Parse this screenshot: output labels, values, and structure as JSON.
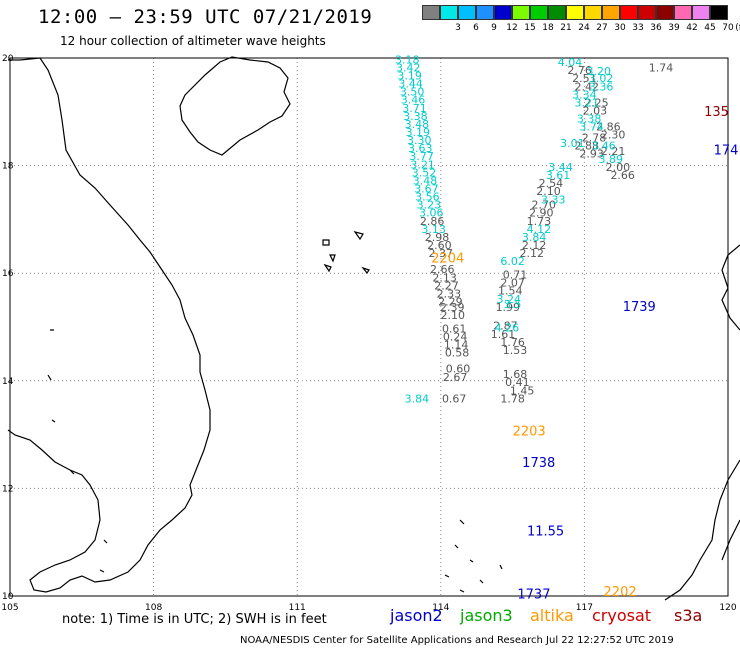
{
  "header": {
    "title": "12:00 – 23:59 UTC 07/21/2019",
    "subtitle": "12 hour collection of altimeter wave heights"
  },
  "scale": {
    "unit": "(ft)",
    "steps": [
      {
        "label": "",
        "color": "#808080"
      },
      {
        "label": "3",
        "color": "#00e8e8"
      },
      {
        "label": "6",
        "color": "#00bfff"
      },
      {
        "label": "9",
        "color": "#1e90ff"
      },
      {
        "label": "12",
        "color": "#0000cd"
      },
      {
        "label": "15",
        "color": "#7cfc00"
      },
      {
        "label": "18",
        "color": "#00cd00"
      },
      {
        "label": "21",
        "color": "#008b00"
      },
      {
        "label": "24",
        "color": "#ffff00"
      },
      {
        "label": "27",
        "color": "#ffd700"
      },
      {
        "label": "30",
        "color": "#ffa500"
      },
      {
        "label": "33",
        "color": "#ff0000"
      },
      {
        "label": "36",
        "color": "#cd0000"
      },
      {
        "label": "39",
        "color": "#8b0000"
      },
      {
        "label": "42",
        "color": "#ff69b4"
      },
      {
        "label": "45",
        "color": "#ee82ee"
      },
      {
        "label": "70",
        "color": "#000000"
      }
    ]
  },
  "axes": {
    "lon_ticks": [
      "105",
      "108",
      "111",
      "114",
      "117",
      "120"
    ],
    "lat_ticks": [
      "20",
      "18",
      "16",
      "14",
      "12",
      "10"
    ]
  },
  "colors": {
    "gray": "#555555",
    "cyan": "#00cccc",
    "blue": "#0000cc",
    "orange": "#ff9900",
    "darkred": "#8b0000",
    "coast": "#000000",
    "grid": "#888888"
  },
  "track_labels": [
    {
      "text": "2204",
      "lon": 113.8,
      "lat": 16.2,
      "color": "orange"
    },
    {
      "text": "2203",
      "lon": 115.5,
      "lat": 12.98,
      "color": "orange"
    },
    {
      "text": "2202",
      "lon": 117.4,
      "lat": 10.0,
      "color": "orange"
    },
    {
      "text": "1739",
      "lon": 117.8,
      "lat": 15.3,
      "color": "blue"
    },
    {
      "text": "1738",
      "lon": 115.7,
      "lat": 12.4,
      "color": "blue"
    },
    {
      "text": "1737",
      "lon": 115.6,
      "lat": 9.95,
      "color": "blue"
    },
    {
      "text": "174",
      "lon": 119.7,
      "lat": 18.21,
      "color": "blue"
    },
    {
      "text": "135",
      "lon": 119.5,
      "lat": 18.92,
      "color": "darkred"
    },
    {
      "text": "11.55",
      "lon": 115.8,
      "lat": 11.12,
      "color": "blue"
    }
  ],
  "tracks": [
    {
      "color": "cyan",
      "points": [
        [
          "3.18",
          113.3,
          19.9
        ],
        [
          "3.42",
          113.32,
          19.75
        ],
        [
          "3.19",
          113.35,
          19.6
        ],
        [
          "3.44",
          113.37,
          19.45
        ],
        [
          "3.50",
          113.4,
          19.3
        ],
        [
          "3.46",
          113.42,
          19.15
        ],
        [
          "3.71",
          113.45,
          19.0
        ],
        [
          "3.38",
          113.47,
          18.85
        ],
        [
          "3.48",
          113.5,
          18.7
        ],
        [
          "3.19",
          113.52,
          18.55
        ],
        [
          "3.30",
          113.55,
          18.4
        ],
        [
          "3.63",
          113.57,
          18.25
        ],
        [
          "3.77",
          113.6,
          18.1
        ],
        [
          "3.21",
          113.62,
          17.95
        ],
        [
          "3.52",
          113.65,
          17.8
        ],
        [
          "3.48",
          113.67,
          17.65
        ],
        [
          "3.67",
          113.7,
          17.5
        ],
        [
          "3.56",
          113.72,
          17.35
        ],
        [
          "3.23",
          113.75,
          17.2
        ],
        [
          "3.06",
          113.8,
          17.05
        ],
        [
          "3.13",
          113.85,
          16.75
        ]
      ]
    },
    {
      "color": "gray",
      "points": [
        [
          "2.86",
          113.82,
          16.9
        ],
        [
          "2.98",
          113.92,
          16.6
        ],
        [
          "2.60",
          113.97,
          16.45
        ],
        [
          "2.37",
          114.0,
          16.3
        ],
        [
          "2.66",
          114.03,
          16.0
        ],
        [
          "2.13",
          114.08,
          15.85
        ],
        [
          "2.27",
          114.12,
          15.7
        ],
        [
          "2.33",
          114.17,
          15.55
        ],
        [
          "2.29",
          114.2,
          15.4
        ],
        [
          "2.39",
          114.24,
          15.3
        ],
        [
          "2.10",
          114.25,
          15.15
        ],
        [
          "0.61",
          114.28,
          14.9
        ],
        [
          "0.24",
          114.3,
          14.75
        ],
        [
          "1.14",
          114.32,
          14.6
        ],
        [
          "0.58",
          114.34,
          14.45
        ],
        [
          "0.60",
          114.36,
          14.15
        ],
        [
          "2.67",
          114.3,
          14.0
        ],
        [
          "0.67",
          114.28,
          13.6
        ]
      ]
    },
    {
      "color": "gray",
      "points": [
        [
          "0.71",
          115.55,
          15.9
        ],
        [
          "2.07",
          115.5,
          15.75
        ],
        [
          "1.54",
          115.45,
          15.6
        ],
        [
          "1.99",
          115.4,
          15.3
        ],
        [
          "2.87",
          115.35,
          14.95
        ],
        [
          "1.61",
          115.3,
          14.8
        ],
        [
          "1.76",
          115.5,
          14.65
        ],
        [
          "1.53",
          115.55,
          14.5
        ],
        [
          "1.68",
          115.55,
          14.05
        ],
        [
          "0.41",
          115.6,
          13.9
        ],
        [
          "1.45",
          115.7,
          13.75
        ],
        [
          "1.78",
          115.5,
          13.6
        ]
      ]
    },
    {
      "color": "cyan",
      "points": [
        [
          "3.24",
          115.42,
          15.45
        ],
        [
          "3.5",
          115.5,
          15.35
        ],
        [
          "4.26",
          115.38,
          14.92
        ],
        [
          "3.84",
          113.5,
          13.6
        ]
      ]
    },
    {
      "color": "gray",
      "points": [
        [
          "2.76",
          116.9,
          19.7
        ],
        [
          "2.51",
          117.0,
          19.55
        ],
        [
          "2.42",
          117.05,
          19.4
        ],
        [
          "2.25",
          117.25,
          19.1
        ],
        [
          "2.03",
          117.22,
          18.95
        ],
        [
          "2.86",
          117.5,
          18.65
        ],
        [
          "2.30",
          117.6,
          18.5
        ],
        [
          "2.78",
          117.2,
          18.45
        ],
        [
          "2.93",
          117.15,
          18.15
        ],
        [
          "2.88",
          117.05,
          18.3
        ],
        [
          "2.21",
          117.6,
          18.2
        ],
        [
          "2.00",
          117.7,
          17.9
        ],
        [
          "2.66",
          117.8,
          17.75
        ],
        [
          "2.54",
          116.3,
          17.6
        ],
        [
          "2.10",
          116.25,
          17.45
        ],
        [
          "2.70",
          116.15,
          17.2
        ],
        [
          "2.90",
          116.1,
          17.05
        ],
        [
          "1.73",
          116.05,
          16.9
        ],
        [
          "2.12",
          115.95,
          16.45
        ],
        [
          "2.12",
          115.9,
          16.3
        ],
        [
          "1.74",
          118.6,
          19.75
        ]
      ]
    },
    {
      "color": "cyan",
      "points": [
        [
          "4.04",
          116.7,
          19.85
        ],
        [
          "3.20",
          117.3,
          19.68
        ],
        [
          "3.02",
          117.35,
          19.55
        ],
        [
          "3.36",
          117.35,
          19.4
        ],
        [
          "3.34",
          117.0,
          19.25
        ],
        [
          "3.21",
          117.05,
          19.1
        ],
        [
          "3.38",
          117.1,
          18.8
        ],
        [
          "3.74",
          117.15,
          18.65
        ],
        [
          "3.01",
          116.75,
          18.35
        ],
        [
          "3.46",
          117.4,
          18.3
        ],
        [
          "3.89",
          117.55,
          18.05
        ],
        [
          "3.61",
          116.45,
          17.75
        ],
        [
          "3.44",
          116.5,
          17.9
        ],
        [
          "3.33",
          116.35,
          17.3
        ],
        [
          "4.12",
          116.05,
          16.75
        ],
        [
          "3.84",
          115.95,
          16.6
        ],
        [
          "6.02",
          115.5,
          16.15
        ]
      ]
    }
  ],
  "satellites": [
    {
      "name": "jason2",
      "color": "#0000cc"
    },
    {
      "name": "jason3",
      "color": "#00aa00"
    },
    {
      "name": "altika",
      "color": "#ff9900"
    },
    {
      "name": "cryosat",
      "color": "#cc0000"
    },
    {
      "name": "s3a",
      "color": "#8b0000"
    }
  ],
  "footer": {
    "note": "note:  1) Time is in UTC;  2) SWH is in feet",
    "credit": "NOAA/NESDIS Center for Satellite Applications and Research    Jul 22 12:27:52 UTC 2019"
  }
}
